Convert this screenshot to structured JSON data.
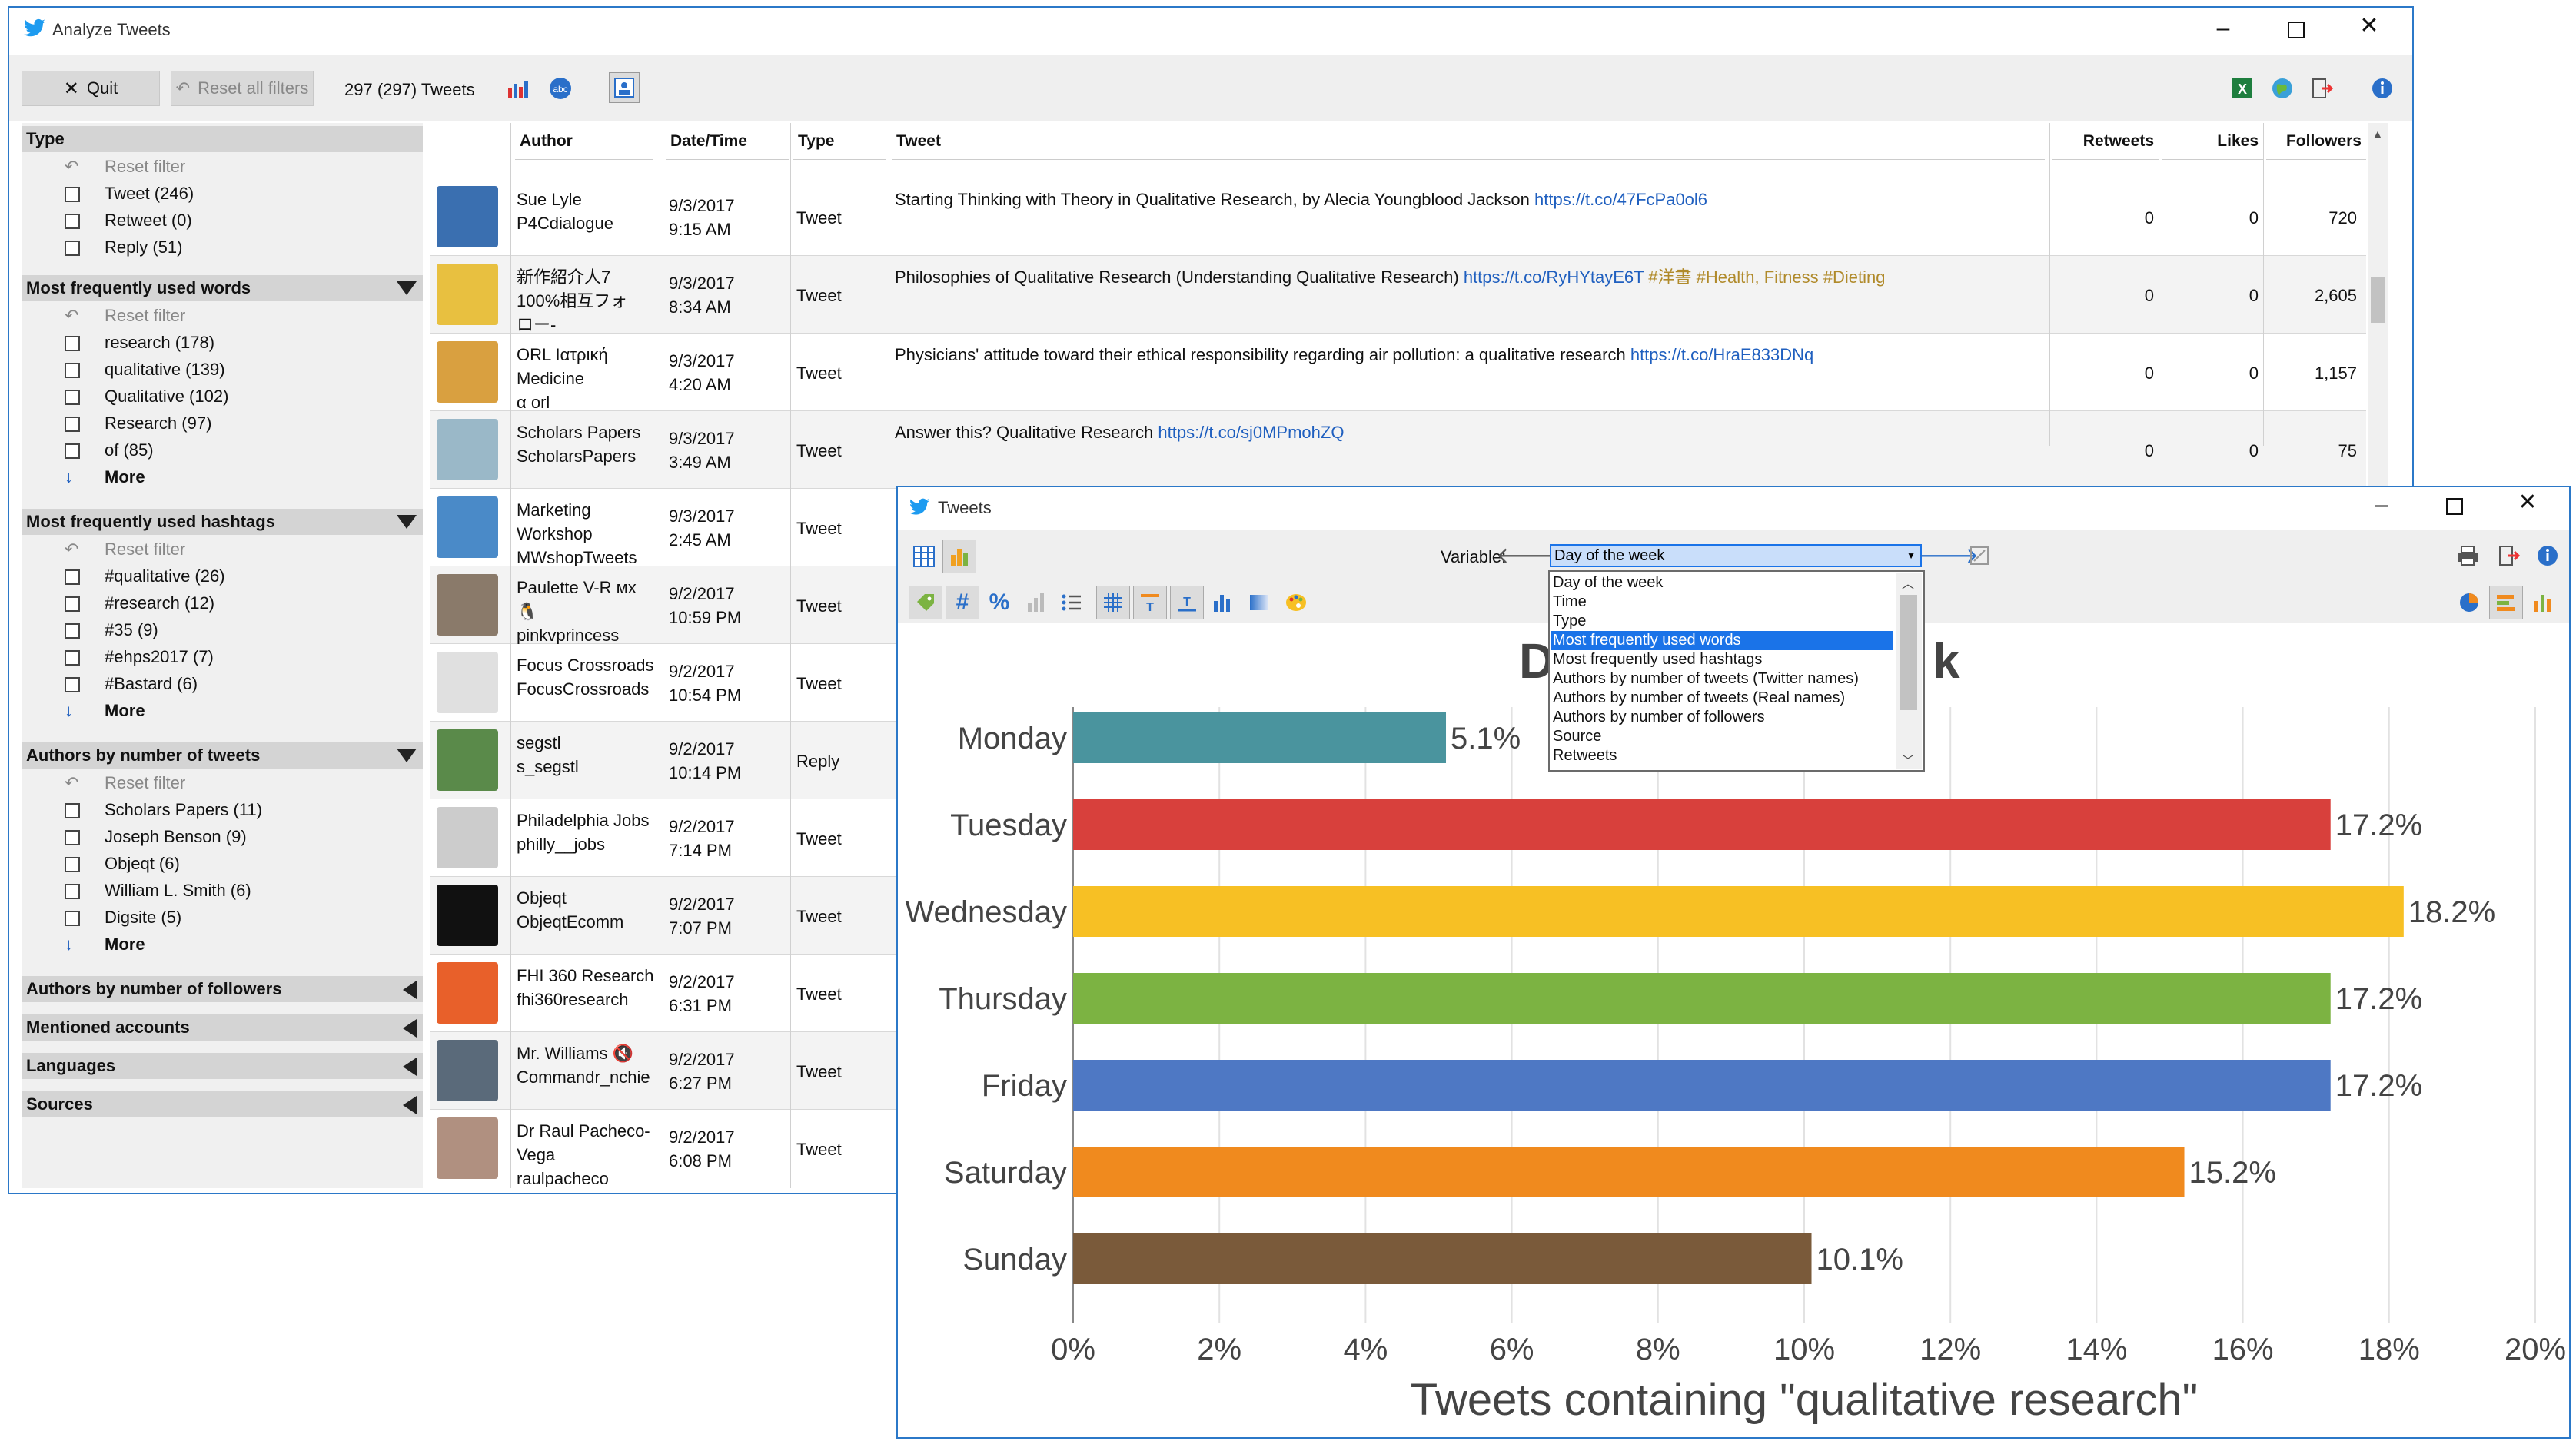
{
  "main_window": {
    "title": "Analyze Tweets",
    "toolbar": {
      "quit": "Quit",
      "reset_all": "Reset all filters",
      "count": "297 (297) Tweets"
    },
    "sidebar": {
      "type": {
        "title": "Type",
        "reset": "Reset filter",
        "items": [
          "Tweet (246)",
          "Retweet (0)",
          "Reply (51)"
        ]
      },
      "words": {
        "title": "Most frequently used words",
        "reset": "Reset filter",
        "items": [
          "research (178)",
          "qualitative (139)",
          "Qualitative (102)",
          "Research (97)",
          "of (85)"
        ],
        "more": "More"
      },
      "hashtags": {
        "title": "Most frequently used hashtags",
        "reset": "Reset filter",
        "items": [
          "#qualitative (26)",
          "#research (12)",
          "#35 (9)",
          "#ehps2017 (7)",
          "#Bastard (6)"
        ],
        "more": "More"
      },
      "authors": {
        "title": "Authors by number of tweets",
        "reset": "Reset filter",
        "items": [
          "Scholars Papers (11)",
          "Joseph Benson (9)",
          "Objeqt (6)",
          "William L. Smith (6)",
          "Digsite (5)"
        ],
        "more": "More"
      },
      "collapsed": [
        "Authors by number of followers",
        "Mentioned accounts",
        "Languages",
        "Sources"
      ]
    },
    "grid": {
      "headers": {
        "author": "Author",
        "datetime": "Date/Time",
        "type": "Type",
        "tweet": "Tweet",
        "retweets": "Retweets",
        "likes": "Likes",
        "followers": "Followers"
      },
      "rows": [
        {
          "author1": "Sue Lyle",
          "author2": "P4Cdialogue",
          "author3": "",
          "date": "9/3/2017",
          "time": "9:15 AM",
          "type": "Tweet",
          "text": "Starting Thinking with Theory in Qualitative Research, by Alecia Youngblood Jackson ",
          "link": "https://t.co/47FcPa0ol6",
          "extra": "",
          "retweets": "0",
          "likes": "0",
          "followers": "720",
          "color": "#3a6fb0"
        },
        {
          "author1": "新作紹介人7",
          "author2": "100%相互フォ",
          "author3": "ロー-",
          "date": "9/3/2017",
          "time": "8:34 AM",
          "type": "Tweet",
          "text": "Philosophies of Qualitative Research (Understanding Qualitative Research) ",
          "link": "https://t.co/RyHYtayE6T",
          "extra": " #洋書 #Health, Fitness #Dieting",
          "retweets": "0",
          "likes": "0",
          "followers": "2,605",
          "color": "#e8c040"
        },
        {
          "author1": "ORL Ιατρική",
          "author2": "Medicine",
          "author3": "α orl",
          "date": "9/3/2017",
          "time": "4:20 AM",
          "type": "Tweet",
          "text": "Physicians' attitude toward their ethical responsibility regarding air pollution: a qualitative research ",
          "link": "https://t.co/HraE833DNq",
          "extra": "",
          "retweets": "0",
          "likes": "0",
          "followers": "1,157",
          "color": "#d9a040"
        },
        {
          "author1": "Scholars Papers",
          "author2": "ScholarsPapers",
          "author3": "",
          "date": "9/3/2017",
          "time": "3:49 AM",
          "type": "Tweet",
          "text": "Answer this? Qualitative Research ",
          "link": "https://t.co/sj0MPmohZQ",
          "extra": "",
          "retweets": "0",
          "likes": "0",
          "followers": "75",
          "color": "#9ab8c8"
        },
        {
          "author1": "Marketing",
          "author2": "Workshop",
          "author3": "MWshopTweets",
          "date": "9/3/2017",
          "time": "2:45 AM",
          "type": "Tweet",
          "text": "",
          "link": "",
          "extra": "",
          "retweets": "",
          "likes": "",
          "followers": "",
          "color": "#4a8ac8"
        },
        {
          "author1": "Paulette V-R мх",
          "author2": "🐧",
          "author3": "pinkvprincess",
          "date": "9/2/2017",
          "time": "10:59 PM",
          "type": "Tweet",
          "text": "",
          "link": "",
          "extra": "",
          "retweets": "",
          "likes": "",
          "followers": "",
          "color": "#8a7a6a"
        },
        {
          "author1": "Focus Crossroads",
          "author2": "FocusCrossroads",
          "author3": "",
          "date": "9/2/2017",
          "time": "10:54 PM",
          "type": "Tweet",
          "text": "",
          "link": "",
          "extra": "",
          "retweets": "",
          "likes": "",
          "followers": "",
          "color": "#e0e0e0"
        },
        {
          "author1": "segstl",
          "author2": "s_segstl",
          "author3": "",
          "date": "9/2/2017",
          "time": "10:14 PM",
          "type": "Reply",
          "text": "",
          "link": "",
          "extra": "",
          "retweets": "",
          "likes": "",
          "followers": "",
          "color": "#5a8a4a"
        },
        {
          "author1": "Philadelphia Jobs",
          "author2": "philly__jobs",
          "author3": "",
          "date": "9/2/2017",
          "time": "7:14 PM",
          "type": "Tweet",
          "text": "",
          "link": "",
          "extra": "",
          "retweets": "",
          "likes": "",
          "followers": "",
          "color": "#cccccc"
        },
        {
          "author1": "Objeqt",
          "author2": "ObjeqtEcomm",
          "author3": "",
          "date": "9/2/2017",
          "time": "7:07 PM",
          "type": "Tweet",
          "text": "",
          "link": "",
          "extra": "",
          "retweets": "",
          "likes": "",
          "followers": "",
          "color": "#111111"
        },
        {
          "author1": "FHI 360 Research",
          "author2": "fhi360research",
          "author3": "",
          "date": "9/2/2017",
          "time": "6:31 PM",
          "type": "Tweet",
          "text": "",
          "link": "",
          "extra": "",
          "retweets": "",
          "likes": "",
          "followers": "",
          "color": "#e8602a"
        },
        {
          "author1": "Mr. Williams 🔇",
          "author2": "Commandr_nchie",
          "author3": "",
          "date": "9/2/2017",
          "time": "6:27 PM",
          "type": "Tweet",
          "text": "",
          "link": "",
          "extra": "",
          "retweets": "",
          "likes": "",
          "followers": "",
          "color": "#5a6a7a"
        },
        {
          "author1": "Dr Raul Pacheco-",
          "author2": "Vega",
          "author3": "raulpacheco",
          "date": "9/2/2017",
          "time": "6:08 PM",
          "type": "Tweet",
          "text": "",
          "link": "",
          "extra": "",
          "retweets": "",
          "likes": "",
          "followers": "",
          "color": "#b09080"
        }
      ]
    }
  },
  "chart_window": {
    "title": "Tweets",
    "variable_label": "Variable:",
    "selected": "Day of the week",
    "options": [
      "Day of the week",
      "Time",
      "Type",
      "Most frequently used words",
      "Most frequently used hashtags",
      "Authors by number of tweets (Twitter names)",
      "Authors by number of tweets (Real names)",
      "Authors by number of followers",
      "Source",
      "Retweets"
    ],
    "highlighted": "Most frequently used words",
    "chart_title_left": "D",
    "chart_title_right": "k"
  },
  "chart_data": {
    "type": "bar",
    "orientation": "horizontal",
    "categories": [
      "Monday",
      "Tuesday",
      "Wednesday",
      "Thursday",
      "Friday",
      "Saturday",
      "Sunday"
    ],
    "values": [
      5.1,
      17.2,
      18.2,
      17.2,
      17.2,
      15.2,
      10.1
    ],
    "labels": [
      "5.1%",
      "17.2%",
      "18.2%",
      "17.2%",
      "17.2%",
      "15.2%",
      "10.1%"
    ],
    "colors": [
      "#4a949e",
      "#d8403c",
      "#f7c024",
      "#7cb342",
      "#4e78c4",
      "#f08a1e",
      "#7a5a3a"
    ],
    "xlabel": "Tweets containing \"qualitative research\"",
    "xlim": [
      0,
      20
    ],
    "xticks": [
      "0%",
      "2%",
      "4%",
      "6%",
      "8%",
      "10%",
      "12%",
      "14%",
      "16%",
      "18%",
      "20%"
    ],
    "grid": true
  }
}
